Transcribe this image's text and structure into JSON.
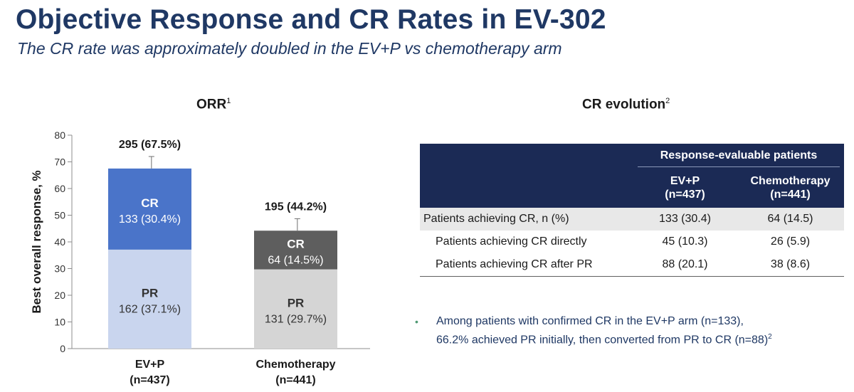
{
  "header": {
    "title": "Objective Response and CR Rates in EV-302",
    "subtitle": "The CR rate was approximately doubled in the EV+P vs chemotherapy arm"
  },
  "orr_panel": {
    "title": "ORR",
    "title_sup": "1"
  },
  "cr_panel": {
    "title": "CR evolution",
    "title_sup": "2"
  },
  "chart_data": {
    "type": "bar",
    "stacked": true,
    "ylabel": "Best overall response, %",
    "ylim": [
      0,
      80
    ],
    "yticks": [
      "0",
      "10",
      "20",
      "30",
      "40",
      "50",
      "60",
      "70",
      "80"
    ],
    "categories": [
      {
        "line1": "EV+P",
        "line2": "(n=437)"
      },
      {
        "line1": "Chemotherapy",
        "line2": "(n=441)"
      }
    ],
    "bars": [
      {
        "total": 67.5,
        "total_label": "295 (67.5%)",
        "error_high": 72.0,
        "error_low": 62.8,
        "segments": [
          {
            "name": "PR",
            "value": 37.1,
            "label": "162 (37.1%)",
            "color": "#c9d5ee",
            "text_color": "#333333"
          },
          {
            "name": "CR",
            "value": 30.4,
            "label": "133 (30.4%)",
            "color": "#4a74c9",
            "text_color": "#ffffff"
          }
        ]
      },
      {
        "total": 44.2,
        "total_label": "195 (44.2%)",
        "error_high": 48.7,
        "error_low": 39.6,
        "segments": [
          {
            "name": "PR",
            "value": 29.7,
            "label": "131 (29.7%)",
            "color": "#d5d5d5",
            "text_color": "#333333"
          },
          {
            "name": "CR",
            "value": 14.5,
            "label": "64 (14.5%)",
            "color": "#5e5e5e",
            "text_color": "#ffffff"
          }
        ]
      }
    ]
  },
  "table": {
    "group_header": "Response-evaluable patients",
    "col1_line1": "EV+P",
    "col1_line2": "(n=437)",
    "col2_line1": "Chemotherapy",
    "col2_line2": "(n=441)",
    "rows": [
      {
        "label": "Patients achieving CR, n (%)",
        "evp": "133 (30.4)",
        "chemo": "64 (14.5)"
      },
      {
        "label": "Patients achieving CR directly",
        "evp": "45 (10.3)",
        "chemo": "26 (5.9)"
      },
      {
        "label": "Patients achieving CR after PR",
        "evp": "88 (20.1)",
        "chemo": "38 (8.6)"
      }
    ]
  },
  "note": {
    "bullet": "•",
    "line1": "Among patients with confirmed CR in the EV+P arm (n=133),",
    "line2": "66.2% achieved PR initially, then converted from PR to CR (n=88)",
    "sup": "2"
  }
}
